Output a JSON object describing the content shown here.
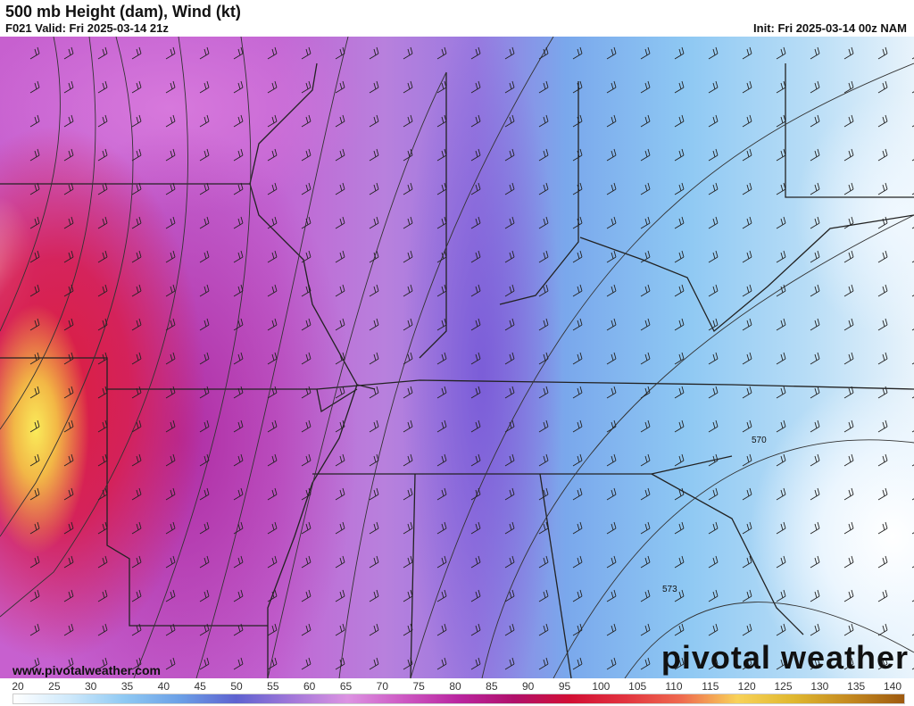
{
  "header": {
    "title": "500 mb Height (dam), Wind (kt)",
    "valid": "F021 Valid: Fri 2025-03-14 21z",
    "init": "Init: Fri 2025-03-14 00z NAM"
  },
  "map": {
    "contour_labels": [
      "570",
      "573"
    ],
    "website": "www.pivotalweather.com",
    "logo": "pivotal weather"
  },
  "colorbar": {
    "ticks": [
      "20",
      "25",
      "30",
      "35",
      "40",
      "45",
      "50",
      "55",
      "60",
      "65",
      "70",
      "75",
      "80",
      "85",
      "90",
      "95",
      "100",
      "105",
      "110",
      "115",
      "120",
      "125",
      "130",
      "135",
      "140"
    ],
    "colors": [
      "#ffffff",
      "#cfe9fb",
      "#8fc9f3",
      "#6b9fe6",
      "#5e62d0",
      "#a277d9",
      "#dc93e2",
      "#cd59c3",
      "#b9259f",
      "#b0106a",
      "#d20f34",
      "#e2343f",
      "#ef6a4f",
      "#f8d25a",
      "#e0b830",
      "#c58a20",
      "#9e5a10"
    ]
  }
}
